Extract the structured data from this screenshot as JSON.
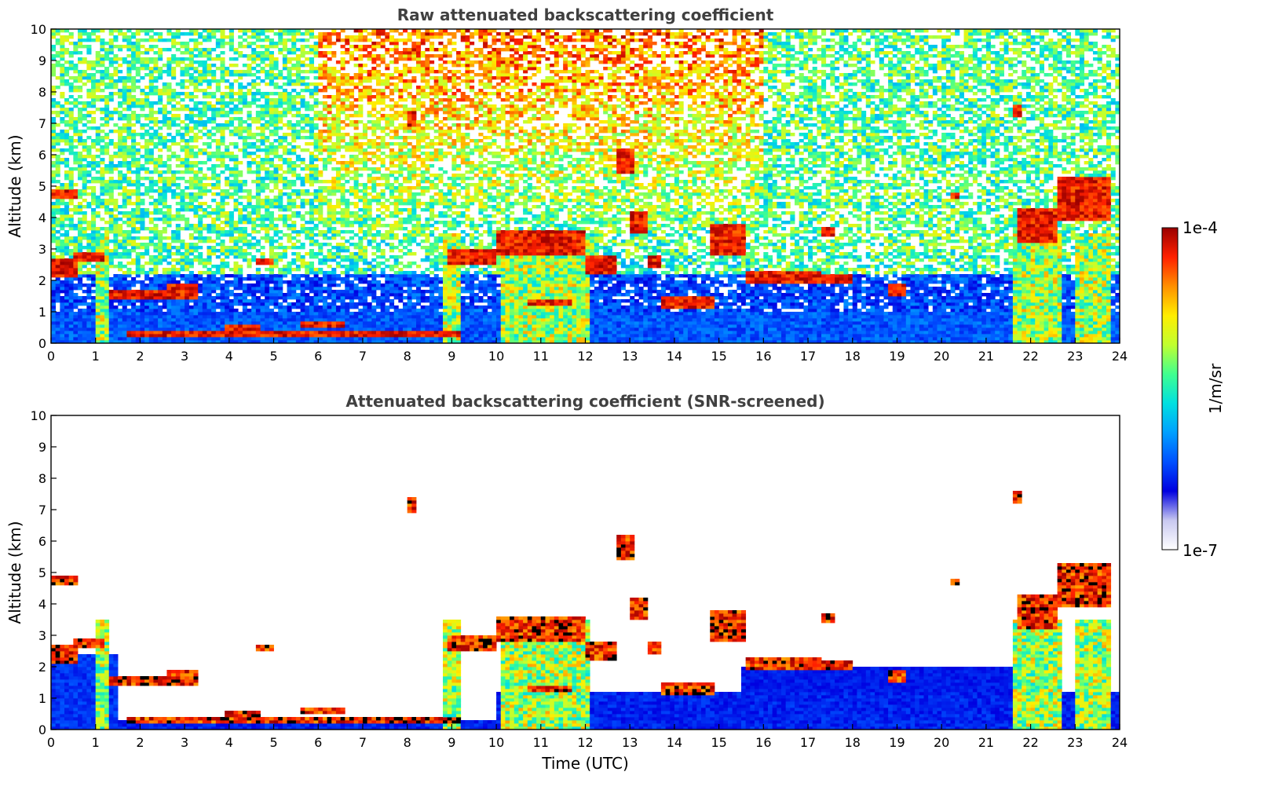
{
  "chart_data": {
    "panels": [
      {
        "id": "raw",
        "type": "heatmap",
        "title": "Raw attenuated backscattering coefficient",
        "xlabel": "",
        "ylabel": "Altitude (km)",
        "xlim": [
          0,
          24
        ],
        "ylim": [
          0,
          10
        ],
        "xticks": [
          0,
          1,
          2,
          3,
          4,
          5,
          6,
          7,
          8,
          9,
          10,
          11,
          12,
          13,
          14,
          15,
          16,
          17,
          18,
          19,
          20,
          21,
          22,
          23,
          24
        ],
        "yticks": [
          0,
          1,
          2,
          3,
          4,
          5,
          6,
          7,
          8,
          9,
          10
        ],
        "screened": false
      },
      {
        "id": "snr",
        "type": "heatmap",
        "title": "Attenuated backscattering coefficient (SNR-screened)",
        "xlabel": "Time (UTC)",
        "ylabel": "Altitude (km)",
        "xlim": [
          0,
          24
        ],
        "ylim": [
          0,
          10
        ],
        "xticks": [
          0,
          1,
          2,
          3,
          4,
          5,
          6,
          7,
          8,
          9,
          10,
          11,
          12,
          13,
          14,
          15,
          16,
          17,
          18,
          19,
          20,
          21,
          22,
          23,
          24
        ],
        "yticks": [
          0,
          1,
          2,
          3,
          4,
          5,
          6,
          7,
          8,
          9,
          10
        ],
        "screened": true
      }
    ],
    "colorbar": {
      "label": "1/m/sr",
      "max_label": "1e-4",
      "min_label": "1e-7",
      "scale": "log",
      "range": [
        1e-07,
        0.0001
      ],
      "colormap": [
        "#ffffff",
        "#c8c8f0",
        "#0000e0",
        "#0050ff",
        "#00a0ff",
        "#00e0e0",
        "#40ff90",
        "#c0ff30",
        "#ffee00",
        "#ff9000",
        "#ff2000",
        "#9a0000"
      ]
    },
    "cloud_layers": [
      {
        "t0": 0.0,
        "t1": 0.55,
        "z0": 2.1,
        "z1": 2.7
      },
      {
        "t0": 0.0,
        "t1": 0.6,
        "z0": 4.6,
        "z1": 4.9
      },
      {
        "t0": 0.5,
        "t1": 1.2,
        "z0": 2.6,
        "z1": 2.9
      },
      {
        "t0": 1.3,
        "t1": 2.6,
        "z0": 1.4,
        "z1": 1.7
      },
      {
        "t0": 2.6,
        "t1": 3.3,
        "z0": 1.4,
        "z1": 1.9
      },
      {
        "t0": 1.7,
        "t1": 9.2,
        "z0": 0.25,
        "z1": 0.35
      },
      {
        "t0": 3.9,
        "t1": 4.7,
        "z0": 0.45,
        "z1": 0.55
      },
      {
        "t0": 4.6,
        "t1": 5.0,
        "z0": 2.5,
        "z1": 2.65
      },
      {
        "t0": 5.6,
        "t1": 6.6,
        "z0": 0.5,
        "z1": 0.7
      },
      {
        "t0": 8.0,
        "t1": 8.15,
        "z0": 6.9,
        "z1": 7.4
      },
      {
        "t0": 8.9,
        "t1": 10.0,
        "z0": 2.5,
        "z1": 3.0
      },
      {
        "t0": 10.0,
        "t1": 12.0,
        "z0": 2.8,
        "z1": 3.6
      },
      {
        "t0": 10.7,
        "t1": 11.7,
        "z0": 1.2,
        "z1": 1.35
      },
      {
        "t0": 12.0,
        "t1": 12.7,
        "z0": 2.2,
        "z1": 2.8
      },
      {
        "t0": 12.7,
        "t1": 13.1,
        "z0": 5.4,
        "z1": 6.2
      },
      {
        "t0": 13.0,
        "t1": 13.4,
        "z0": 3.5,
        "z1": 4.2
      },
      {
        "t0": 13.4,
        "t1": 13.7,
        "z0": 2.4,
        "z1": 2.8
      },
      {
        "t0": 13.7,
        "t1": 14.9,
        "z0": 1.1,
        "z1": 1.5
      },
      {
        "t0": 14.8,
        "t1": 15.6,
        "z0": 2.8,
        "z1": 3.8
      },
      {
        "t0": 15.6,
        "t1": 17.3,
        "z0": 1.9,
        "z1": 2.3
      },
      {
        "t0": 17.3,
        "t1": 18.0,
        "z0": 1.9,
        "z1": 2.2
      },
      {
        "t0": 17.3,
        "t1": 17.6,
        "z0": 3.4,
        "z1": 3.7
      },
      {
        "t0": 18.8,
        "t1": 19.2,
        "z0": 1.5,
        "z1": 1.9
      },
      {
        "t0": 20.2,
        "t1": 20.4,
        "z0": 4.6,
        "z1": 4.8
      },
      {
        "t0": 21.6,
        "t1": 21.8,
        "z0": 7.2,
        "z1": 7.6
      },
      {
        "t0": 21.7,
        "t1": 22.6,
        "z0": 3.2,
        "z1": 4.3
      },
      {
        "t0": 22.6,
        "t1": 23.8,
        "z0": 3.9,
        "z1": 5.3
      }
    ],
    "precip_shafts": [
      {
        "t0": 1.0,
        "t1": 1.3
      },
      {
        "t0": 8.8,
        "t1": 9.2
      },
      {
        "t0": 10.1,
        "t1": 12.1
      },
      {
        "t0": 21.6,
        "t1": 22.7
      },
      {
        "t0": 23.0,
        "t1": 23.8
      }
    ]
  }
}
